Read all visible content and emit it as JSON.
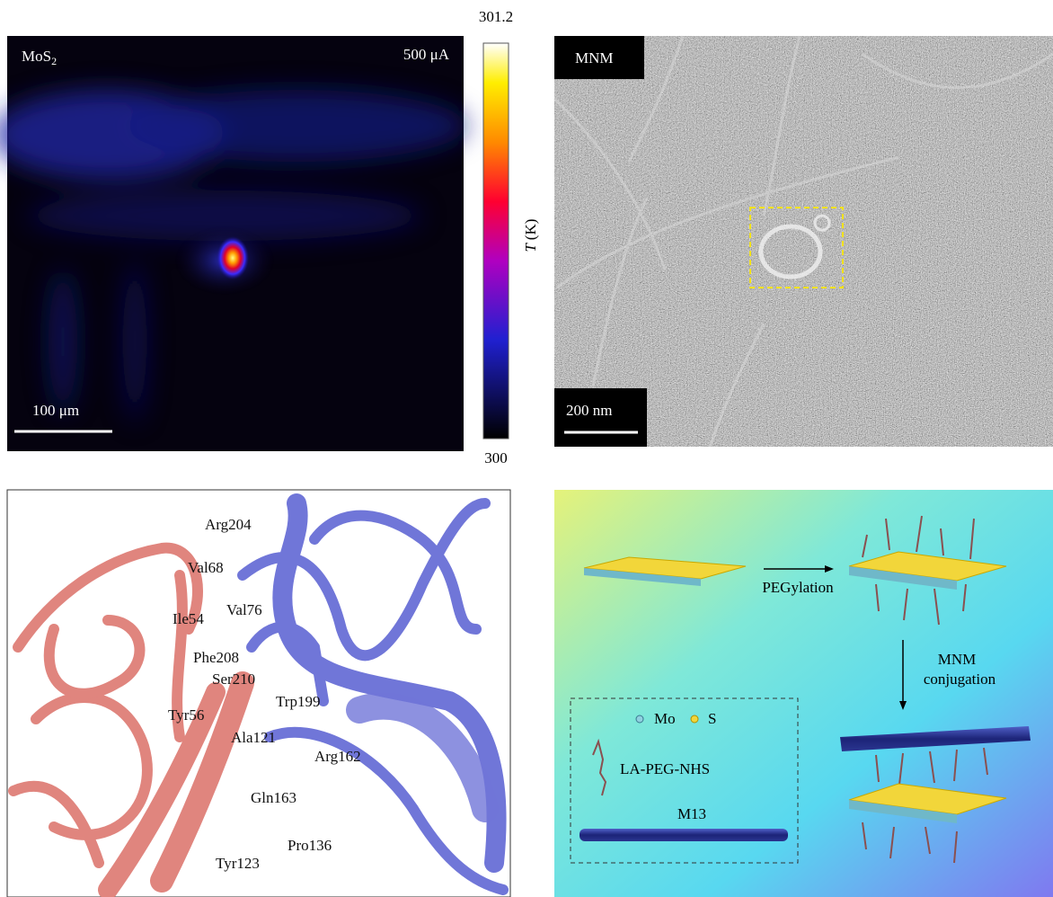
{
  "panel_a": {
    "material": {
      "base": "MoS",
      "subscript": "2"
    },
    "current": "500 μA",
    "scale_bar": "100 μm",
    "colorbar": {
      "max_label": "301.2",
      "min_label": "300",
      "axis_symbol": "T",
      "axis_unit": "(K)"
    }
  },
  "panel_b": {
    "label": "MNM",
    "scale_bar": "200 nm"
  },
  "panel_c": {
    "residues": [
      "Arg204",
      "Val68",
      "Ile54",
      "Val76",
      "Phe208",
      "Ser210",
      "Trp199",
      "Tyr56",
      "Ala121",
      "Arg162",
      "Gln163",
      "Pro136",
      "Tyr123"
    ]
  },
  "panel_d": {
    "step1": "PEGylation",
    "step2": [
      "MNM",
      "conjugation"
    ],
    "legend": {
      "mo": "Mo",
      "s": "S",
      "linker": "LA-PEG-NHS",
      "phage": "M13"
    }
  }
}
